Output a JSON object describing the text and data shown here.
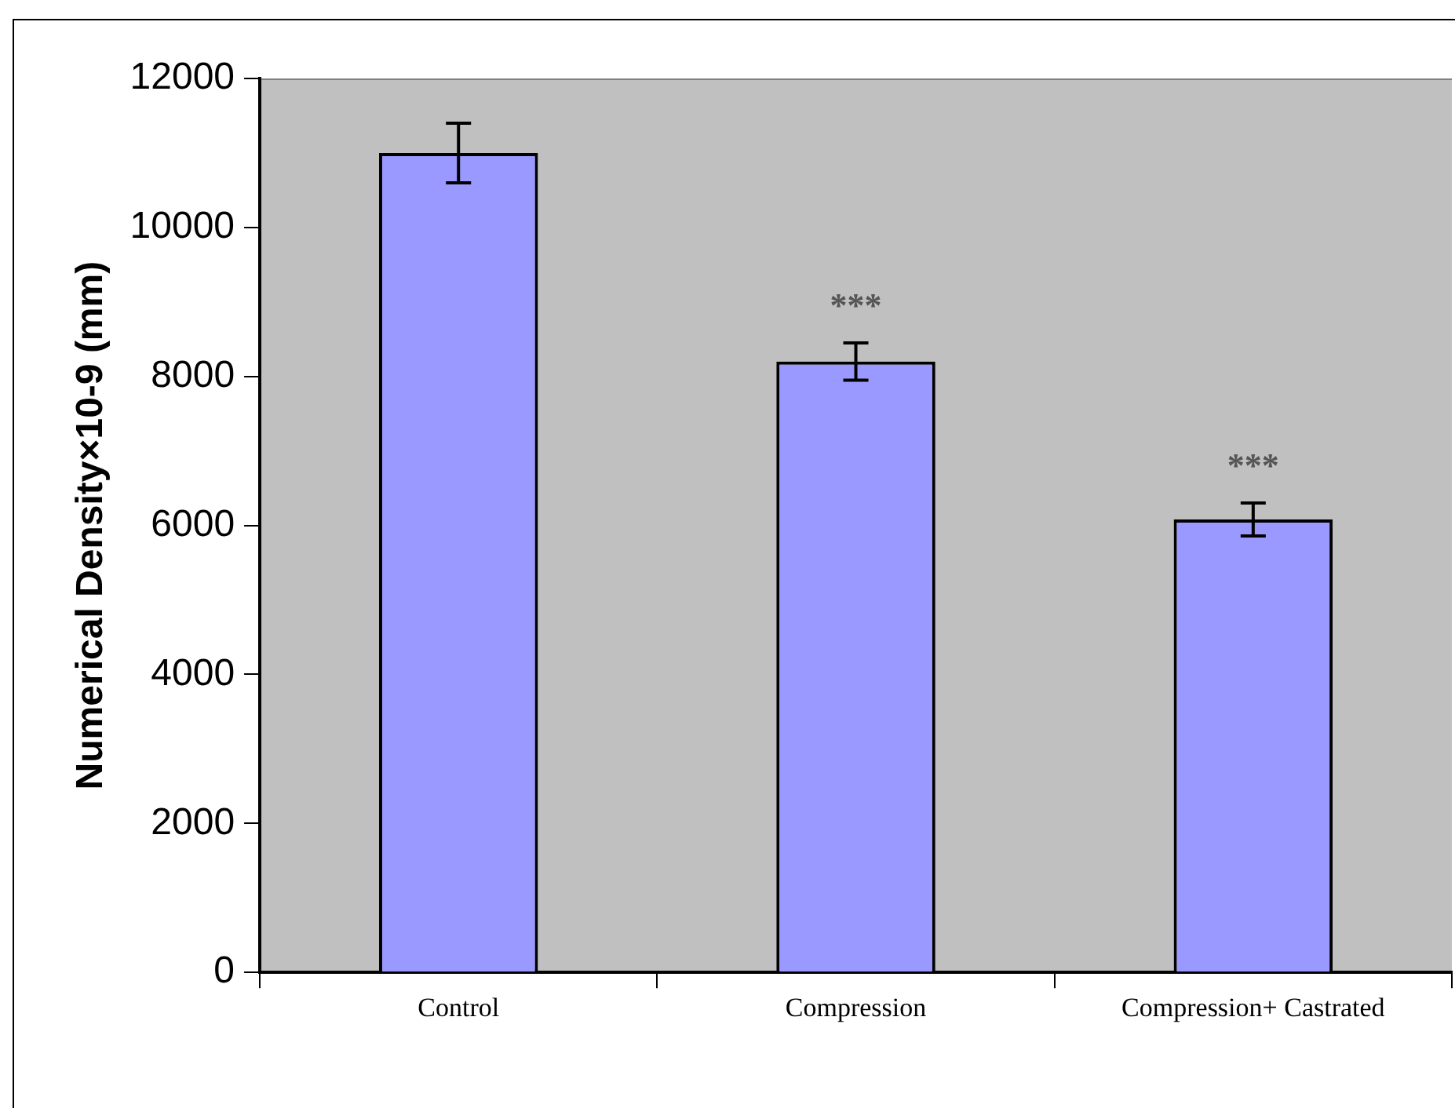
{
  "chart_data": {
    "type": "bar",
    "ylabel": "Numerical Density×10-9 (mm)",
    "categories": [
      "Control",
      "Compression",
      "Compression+ Castrated"
    ],
    "values": [
      11000,
      8200,
      6080
    ],
    "errors": [
      400,
      250,
      220
    ],
    "color": "#9999ff",
    "ylim": [
      0,
      12000
    ],
    "yticks": [
      0,
      2000,
      4000,
      6000,
      8000,
      10000,
      12000
    ],
    "annotations": [
      "***",
      "***"
    ]
  }
}
